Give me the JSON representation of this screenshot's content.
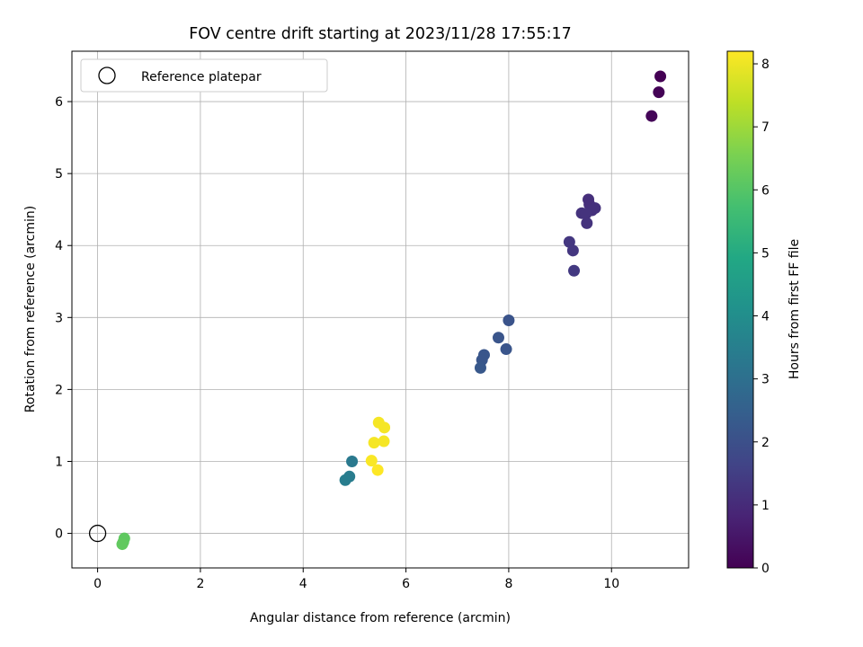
{
  "chart_data": {
    "type": "scatter",
    "title": "FOV centre drift starting at 2023/11/28 17:55:17",
    "xlabel": "Angular distance from reference (arcmin)",
    "ylabel": "Rotation from reference (arcmin)",
    "xlim": [
      -0.5,
      11.5
    ],
    "ylim": [
      -0.48,
      6.7
    ],
    "xticks": [
      0,
      2,
      4,
      6,
      8,
      10
    ],
    "yticks": [
      0,
      1,
      2,
      3,
      4,
      5,
      6
    ],
    "grid": true,
    "legend": {
      "position": "top-left",
      "label": "Reference platepar"
    },
    "reference_point": {
      "x": 0,
      "y": 0
    },
    "colorbar": {
      "label": "Hours from first FF file",
      "min": 0,
      "max": 8.2,
      "ticks": [
        0,
        1,
        2,
        3,
        4,
        5,
        6,
        7,
        8
      ],
      "colormap": "viridis"
    },
    "points": [
      {
        "x": 10.95,
        "y": 6.35,
        "c": 0.0
      },
      {
        "x": 10.92,
        "y": 6.13,
        "c": 0.05
      },
      {
        "x": 10.78,
        "y": 5.8,
        "c": 0.1
      },
      {
        "x": 9.55,
        "y": 4.64,
        "c": 1.1
      },
      {
        "x": 9.57,
        "y": 4.57,
        "c": 1.1
      },
      {
        "x": 9.68,
        "y": 4.52,
        "c": 1.15
      },
      {
        "x": 9.62,
        "y": 4.49,
        "c": 1.15
      },
      {
        "x": 9.42,
        "y": 4.45,
        "c": 1.2
      },
      {
        "x": 9.5,
        "y": 4.44,
        "c": 1.2
      },
      {
        "x": 9.52,
        "y": 4.31,
        "c": 1.2
      },
      {
        "x": 9.18,
        "y": 4.05,
        "c": 1.3
      },
      {
        "x": 9.25,
        "y": 3.93,
        "c": 1.3
      },
      {
        "x": 9.27,
        "y": 3.65,
        "c": 1.35
      },
      {
        "x": 8.0,
        "y": 2.96,
        "c": 2.1
      },
      {
        "x": 7.8,
        "y": 2.72,
        "c": 2.15
      },
      {
        "x": 7.95,
        "y": 2.56,
        "c": 2.15
      },
      {
        "x": 7.52,
        "y": 2.48,
        "c": 2.2
      },
      {
        "x": 7.48,
        "y": 2.41,
        "c": 2.2
      },
      {
        "x": 7.45,
        "y": 2.3,
        "c": 2.25
      },
      {
        "x": 4.95,
        "y": 1.0,
        "c": 3.3
      },
      {
        "x": 4.9,
        "y": 0.79,
        "c": 3.4
      },
      {
        "x": 4.82,
        "y": 0.74,
        "c": 3.45
      },
      {
        "x": 5.47,
        "y": 1.54,
        "c": 8.1
      },
      {
        "x": 5.58,
        "y": 1.47,
        "c": 8.1
      },
      {
        "x": 5.38,
        "y": 1.26,
        "c": 8.1
      },
      {
        "x": 5.57,
        "y": 1.28,
        "c": 8.1
      },
      {
        "x": 5.33,
        "y": 1.01,
        "c": 8.15
      },
      {
        "x": 5.45,
        "y": 0.88,
        "c": 8.2
      },
      {
        "x": 0.52,
        "y": -0.07,
        "c": 6.15
      },
      {
        "x": 0.5,
        "y": -0.12,
        "c": 6.15
      },
      {
        "x": 0.48,
        "y": -0.15,
        "c": 6.2
      }
    ]
  }
}
